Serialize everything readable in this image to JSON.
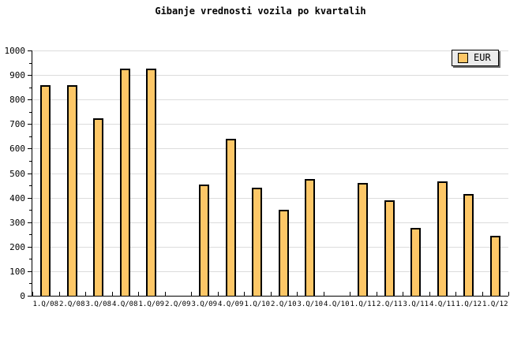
{
  "chart_data": {
    "type": "bar",
    "title": "Gibanje vrednosti vozila po kvartalih",
    "categories": [
      "1.Q/08",
      "2.Q/08",
      "3.Q/08",
      "4.Q/08",
      "1.Q/09",
      "2.Q/09",
      "3.Q/09",
      "4.Q/09",
      "1.Q/10",
      "2.Q/10",
      "3.Q/10",
      "4.Q/10",
      "1.Q/11",
      "2.Q/11",
      "3.Q/11",
      "4.Q/11",
      "1.Q/12",
      "1.Q/12"
    ],
    "series": [
      {
        "name": "EUR",
        "values": [
          860,
          860,
          725,
          925,
          925,
          0,
          455,
          640,
          440,
          350,
          475,
          0,
          460,
          390,
          275,
          465,
          415,
          245
        ]
      }
    ],
    "xlabel": "",
    "ylabel": "",
    "ylim": [
      0,
      1000
    ],
    "y_major_step": 100,
    "y_minor_step": 50,
    "grid": "horizontal-major",
    "legend_position": "top-right",
    "colors": {
      "bar_fill": "#FDC767",
      "bar_border": "#000000",
      "gridline": "#DCDCDC",
      "axis": "#000000",
      "background": "#FFFFFF",
      "legend_bg": "#EBEBEB",
      "legend_shadow": "#6E6E6E"
    }
  }
}
